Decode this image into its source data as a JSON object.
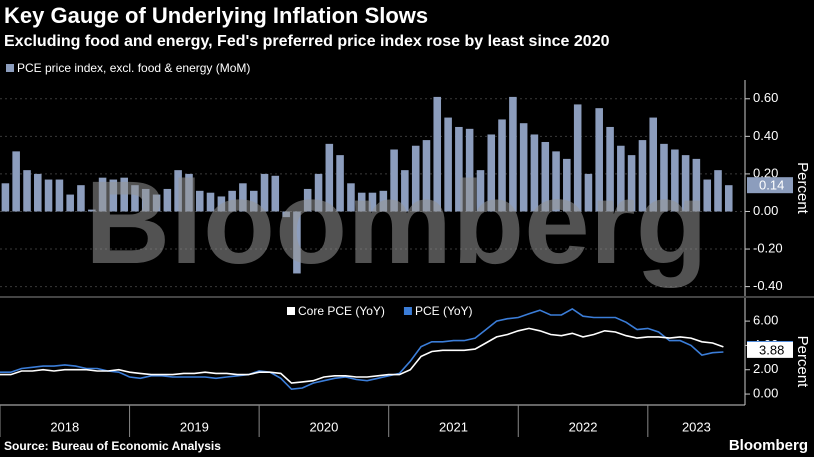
{
  "title": "Key Gauge of Underlying Inflation Slows",
  "subtitle": "Excluding food and energy, Fed's preferred price index rose by least since 2020",
  "source": "Source: Bureau of Economic Analysis",
  "watermark": "Bloomberg",
  "logo": "Bloomberg",
  "chart_data": [
    {
      "type": "bar",
      "ylabel": "Percent",
      "grid": true,
      "x": [
        2018,
        2018.083,
        2018.167,
        2018.25,
        2018.333,
        2018.417,
        2018.5,
        2018.583,
        2018.667,
        2018.75,
        2018.833,
        2018.917,
        2019,
        2019.083,
        2019.167,
        2019.25,
        2019.333,
        2019.417,
        2019.5,
        2019.583,
        2019.667,
        2019.75,
        2019.833,
        2019.917,
        2020,
        2020.083,
        2020.167,
        2020.25,
        2020.333,
        2020.417,
        2020.5,
        2020.583,
        2020.667,
        2020.75,
        2020.833,
        2020.917,
        2021,
        2021.083,
        2021.167,
        2021.25,
        2021.333,
        2021.417,
        2021.5,
        2021.583,
        2021.667,
        2021.75,
        2021.833,
        2021.917,
        2022,
        2022.083,
        2022.167,
        2022.25,
        2022.333,
        2022.417,
        2022.5,
        2022.583,
        2022.667,
        2022.75,
        2022.833,
        2022.917,
        2023,
        2023.083,
        2023.167,
        2023.25,
        2023.333,
        2023.417,
        2023.5,
        2023.583
      ],
      "series": [
        {
          "name": "PCE price index, excl. food & energy (MoM)",
          "color": "#8c9dbd",
          "values": [
            0.15,
            0.32,
            0.22,
            0.2,
            0.17,
            0.17,
            0.09,
            0.14,
            0.01,
            0.18,
            0.17,
            0.18,
            0.14,
            0.12,
            0.09,
            0.12,
            0.22,
            0.2,
            0.11,
            0.1,
            0.08,
            0.11,
            0.15,
            0.11,
            0.2,
            0.19,
            -0.03,
            -0.33,
            0.12,
            0.2,
            0.36,
            0.3,
            0.15,
            0.1,
            0.1,
            0.11,
            0.33,
            0.22,
            0.35,
            0.38,
            0.61,
            0.5,
            0.45,
            0.44,
            0.22,
            0.41,
            0.49,
            0.61,
            0.47,
            0.41,
            0.37,
            0.32,
            0.28,
            0.57,
            0.2,
            0.55,
            0.45,
            0.35,
            0.3,
            0.38,
            0.5,
            0.36,
            0.33,
            0.3,
            0.28,
            0.17,
            0.22,
            0.14
          ]
        }
      ],
      "xlim": [
        2018,
        2023.75
      ],
      "xticks": [
        2018,
        2019,
        2020,
        2021,
        2022,
        2023
      ],
      "ylim": [
        -0.45,
        0.7
      ],
      "yticks": [
        {
          "value": -0.4,
          "label": "-0.40"
        },
        {
          "value": -0.2,
          "label": "-0.20"
        },
        {
          "value": 0,
          "label": "0.00"
        },
        {
          "value": 0.2,
          "label": "0.20"
        },
        {
          "value": 0.4,
          "label": "0.40"
        },
        {
          "value": 0.6,
          "label": "0.60"
        }
      ]
    },
    {
      "type": "line",
      "ylabel": "Percent",
      "grid": false,
      "x": [
        2018,
        2018.083,
        2018.167,
        2018.25,
        2018.333,
        2018.417,
        2018.5,
        2018.583,
        2018.667,
        2018.75,
        2018.833,
        2018.917,
        2019,
        2019.083,
        2019.167,
        2019.25,
        2019.333,
        2019.417,
        2019.5,
        2019.583,
        2019.667,
        2019.75,
        2019.833,
        2019.917,
        2020,
        2020.083,
        2020.167,
        2020.25,
        2020.333,
        2020.417,
        2020.5,
        2020.583,
        2020.667,
        2020.75,
        2020.833,
        2020.917,
        2021,
        2021.083,
        2021.167,
        2021.25,
        2021.333,
        2021.417,
        2021.5,
        2021.583,
        2021.667,
        2021.75,
        2021.833,
        2021.917,
        2022,
        2022.083,
        2022.167,
        2022.25,
        2022.333,
        2022.417,
        2022.5,
        2022.583,
        2022.667,
        2022.75,
        2022.833,
        2022.917,
        2023,
        2023.083,
        2023.167,
        2023.25,
        2023.333,
        2023.417,
        2023.5,
        2023.583
      ],
      "series": [
        {
          "name": "Core PCE (YoY)",
          "color": "#ffffff",
          "values": [
            1.6,
            1.6,
            1.9,
            1.9,
            2.0,
            1.9,
            2.0,
            2.0,
            2.0,
            1.9,
            1.9,
            2.0,
            1.8,
            1.7,
            1.6,
            1.6,
            1.6,
            1.7,
            1.7,
            1.8,
            1.7,
            1.7,
            1.6,
            1.6,
            1.8,
            1.8,
            1.7,
            0.9,
            1.0,
            1.1,
            1.4,
            1.5,
            1.5,
            1.4,
            1.4,
            1.5,
            1.6,
            1.6,
            2.0,
            3.1,
            3.5,
            3.6,
            3.6,
            3.6,
            3.7,
            4.2,
            4.7,
            4.9,
            5.2,
            5.4,
            5.2,
            4.9,
            4.8,
            5.0,
            4.7,
            4.9,
            5.2,
            5.1,
            4.8,
            4.6,
            4.7,
            4.7,
            4.6,
            4.7,
            4.6,
            4.3,
            4.2,
            3.88
          ]
        },
        {
          "name": "PCE (YoY)",
          "color": "#3b7dd8",
          "values": [
            1.8,
            1.8,
            2.1,
            2.2,
            2.3,
            2.3,
            2.4,
            2.3,
            2.1,
            2.1,
            1.9,
            1.8,
            1.4,
            1.3,
            1.5,
            1.5,
            1.4,
            1.4,
            1.4,
            1.4,
            1.3,
            1.4,
            1.5,
            1.6,
            1.9,
            1.8,
            1.3,
            0.4,
            0.5,
            0.9,
            1.1,
            1.3,
            1.4,
            1.2,
            1.1,
            1.3,
            1.5,
            1.7,
            2.7,
            3.9,
            4.3,
            4.3,
            4.4,
            4.4,
            4.6,
            5.3,
            6.0,
            6.2,
            6.3,
            6.6,
            6.9,
            6.5,
            6.5,
            7.0,
            6.4,
            6.3,
            6.3,
            6.3,
            5.9,
            5.3,
            5.4,
            5.1,
            4.4,
            4.4,
            4.0,
            3.2,
            3.4,
            3.46
          ]
        }
      ],
      "xlim": [
        2018,
        2023.75
      ],
      "xticks": [
        2018,
        2019,
        2020,
        2021,
        2022,
        2023
      ],
      "ylim": [
        -0.9,
        7.9
      ],
      "yticks": [
        {
          "value": 0,
          "label": "0.00"
        },
        {
          "value": 2,
          "label": "2.00"
        },
        {
          "value": 4,
          "label": "4.00"
        },
        {
          "value": 6,
          "label": "6.00"
        }
      ]
    }
  ]
}
